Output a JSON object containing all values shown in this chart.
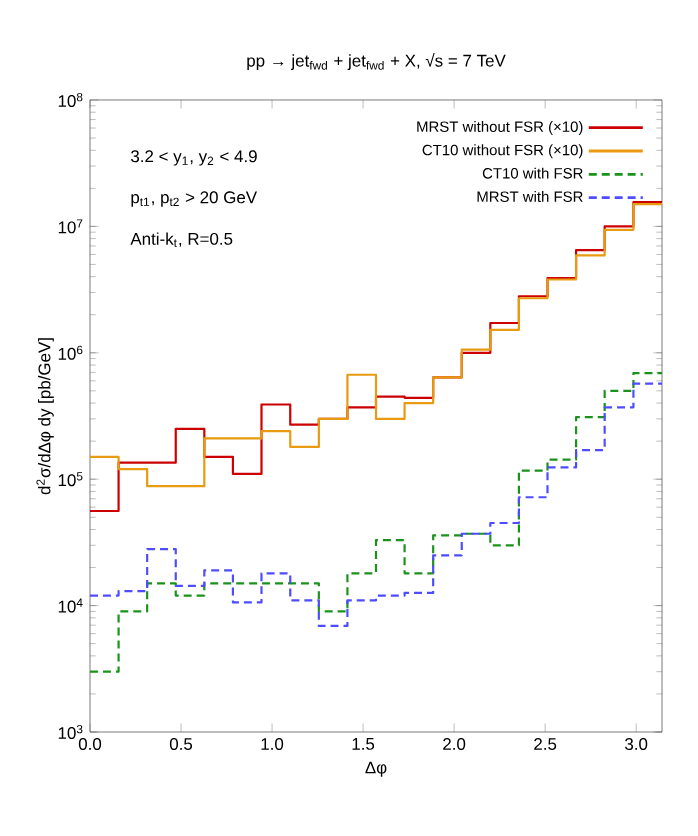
{
  "chart_data": {
    "type": "histogram",
    "title": "pp → jet$_{fwd}$ + jet$_{fwd}$ + X, √s = 7 TeV",
    "xlabel": "Δφ",
    "ylabel": "d$^{2}$σ/dΔφ dy [pb/GeV]",
    "annotations": [
      "3.2 < y$_{1}$, y$_{2}$ < 4.9",
      "p$_{t1}$, p$_{t2}$ > 20 GeV",
      "Anti-k$_{t}$, R=0.5"
    ],
    "bins": [
      0,
      0.157,
      0.314,
      0.471,
      0.628,
      0.785,
      0.942,
      1.1,
      1.257,
      1.414,
      1.571,
      1.728,
      1.885,
      2.042,
      2.199,
      2.356,
      2.513,
      2.67,
      2.827,
      2.985,
      3.142
    ],
    "series": [
      {
        "name": "MRST without FSR (×10)",
        "color": "#cc0000",
        "line_style": "solid",
        "values": [
          56000,
          135000,
          135000,
          250000,
          150000,
          110000,
          390000,
          270000,
          300000,
          370000,
          450000,
          440000,
          640000,
          1000000,
          1720000,
          2800000,
          3900000,
          6500000,
          10000000,
          15600000
        ]
      },
      {
        "name": "CT10 without FSR (×10)",
        "color": "#e89a10",
        "line_style": "solid",
        "values": [
          150000,
          120000,
          88000,
          88000,
          210000,
          210000,
          240000,
          180000,
          300000,
          670000,
          300000,
          400000,
          640000,
          1060000,
          1520000,
          2700000,
          3800000,
          5900000,
          9400000,
          15000000
        ]
      },
      {
        "name": "CT10 with FSR",
        "color": "#1a931a",
        "line_style": "dashed",
        "values": [
          3000,
          9000,
          15000,
          12000,
          15000,
          15000,
          15000,
          15000,
          9000,
          18000,
          33000,
          18000,
          36000,
          37000,
          30000,
          117000,
          143000,
          310000,
          500000,
          690000
        ]
      },
      {
        "name": "MRST with FSR",
        "color": "#4d4dff",
        "line_style": "dashed",
        "values": [
          12000,
          13000,
          28000,
          14300,
          19000,
          10600,
          18000,
          11000,
          6900,
          11000,
          12000,
          12600,
          25000,
          37000,
          45000,
          72000,
          124000,
          170000,
          370000,
          570000
        ]
      }
    ],
    "xlim": [
      0,
      3.142
    ],
    "ylim": [
      1000,
      100000000
    ],
    "xticks": [
      {
        "value": 0,
        "label": "0.0"
      },
      0.5,
      {
        "value": 1,
        "label": "1.0"
      },
      1.5,
      {
        "value": 2,
        "label": "2.0"
      },
      2.5,
      {
        "value": 3,
        "label": "3.0"
      }
    ],
    "yticks": [
      {
        "value": 1000,
        "label": "10$^{3}$"
      },
      {
        "value": 10000,
        "label": "10$^{4}$"
      },
      {
        "value": 100000,
        "label": "10$^{5}$"
      },
      {
        "value": 1000000,
        "label": "10$^{6}$"
      },
      {
        "value": 10000000,
        "label": "10$^{7}$"
      },
      {
        "value": 100000000,
        "label": "10$^{8}$"
      }
    ],
    "log": "y",
    "grid": false,
    "legend": "top right",
    "marker": "none"
  }
}
